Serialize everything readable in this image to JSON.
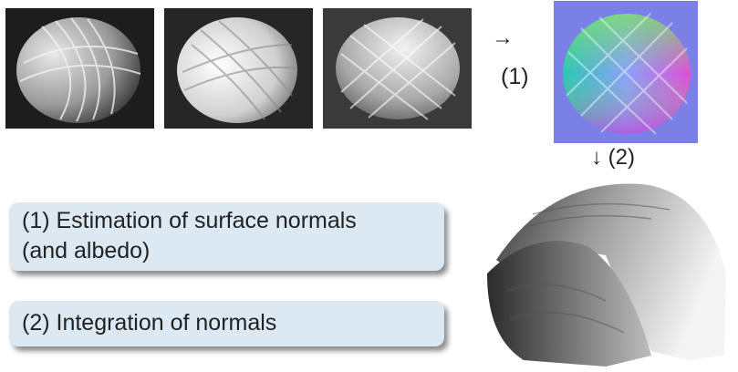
{
  "arrows": {
    "right_symbol": "→",
    "right_label": "(1)",
    "down_label": "↓ (2)"
  },
  "callouts": {
    "step1_line1": "(1) Estimation of surface normals",
    "step1_line2": "(and albedo)",
    "step2": "(2) Integration of normals"
  },
  "colors": {
    "callout_background": "#dce9f3",
    "normal_map_background": "#7a80e6",
    "photo_background": "#1d1d1d"
  }
}
